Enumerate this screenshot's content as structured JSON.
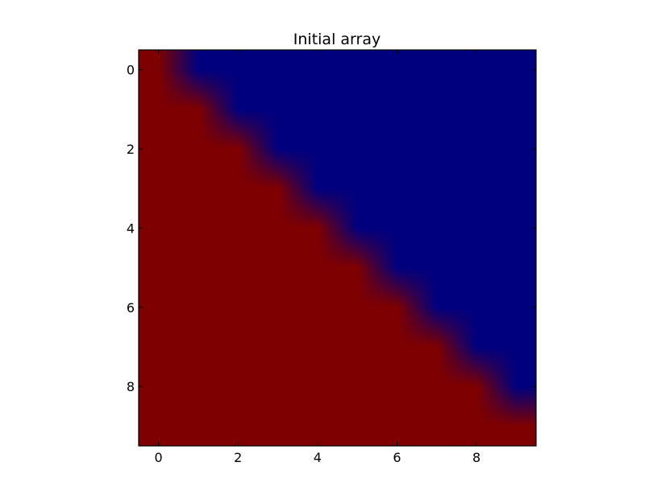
{
  "chart_data": {
    "type": "heatmap",
    "title": "Initial array",
    "xlabel": "",
    "ylabel": "",
    "x_ticks": [
      0,
      2,
      4,
      6,
      8
    ],
    "y_ticks": [
      0,
      2,
      4,
      6,
      8
    ],
    "xlim": [
      -0.5,
      9.5
    ],
    "ylim": [
      9.5,
      -0.5
    ],
    "colormap": "jet",
    "interpolation": "bilinear",
    "value_range": [
      0,
      1
    ],
    "colors": {
      "low": "#00007f",
      "high": "#7f0000"
    },
    "grid": false,
    "values": [
      [
        1,
        0,
        0,
        0,
        0,
        0,
        0,
        0,
        0,
        0
      ],
      [
        1,
        1,
        0,
        0,
        0,
        0,
        0,
        0,
        0,
        0
      ],
      [
        1,
        1,
        1,
        0,
        0,
        0,
        0,
        0,
        0,
        0
      ],
      [
        1,
        1,
        1,
        1,
        0,
        0,
        0,
        0,
        0,
        0
      ],
      [
        1,
        1,
        1,
        1,
        1,
        0,
        0,
        0,
        0,
        0
      ],
      [
        1,
        1,
        1,
        1,
        1,
        1,
        0,
        0,
        0,
        0
      ],
      [
        1,
        1,
        1,
        1,
        1,
        1,
        1,
        0,
        0,
        0
      ],
      [
        1,
        1,
        1,
        1,
        1,
        1,
        1,
        1,
        0,
        0
      ],
      [
        1,
        1,
        1,
        1,
        1,
        1,
        1,
        1,
        1,
        0
      ],
      [
        1,
        1,
        1,
        1,
        1,
        1,
        1,
        1,
        1,
        1
      ]
    ]
  }
}
